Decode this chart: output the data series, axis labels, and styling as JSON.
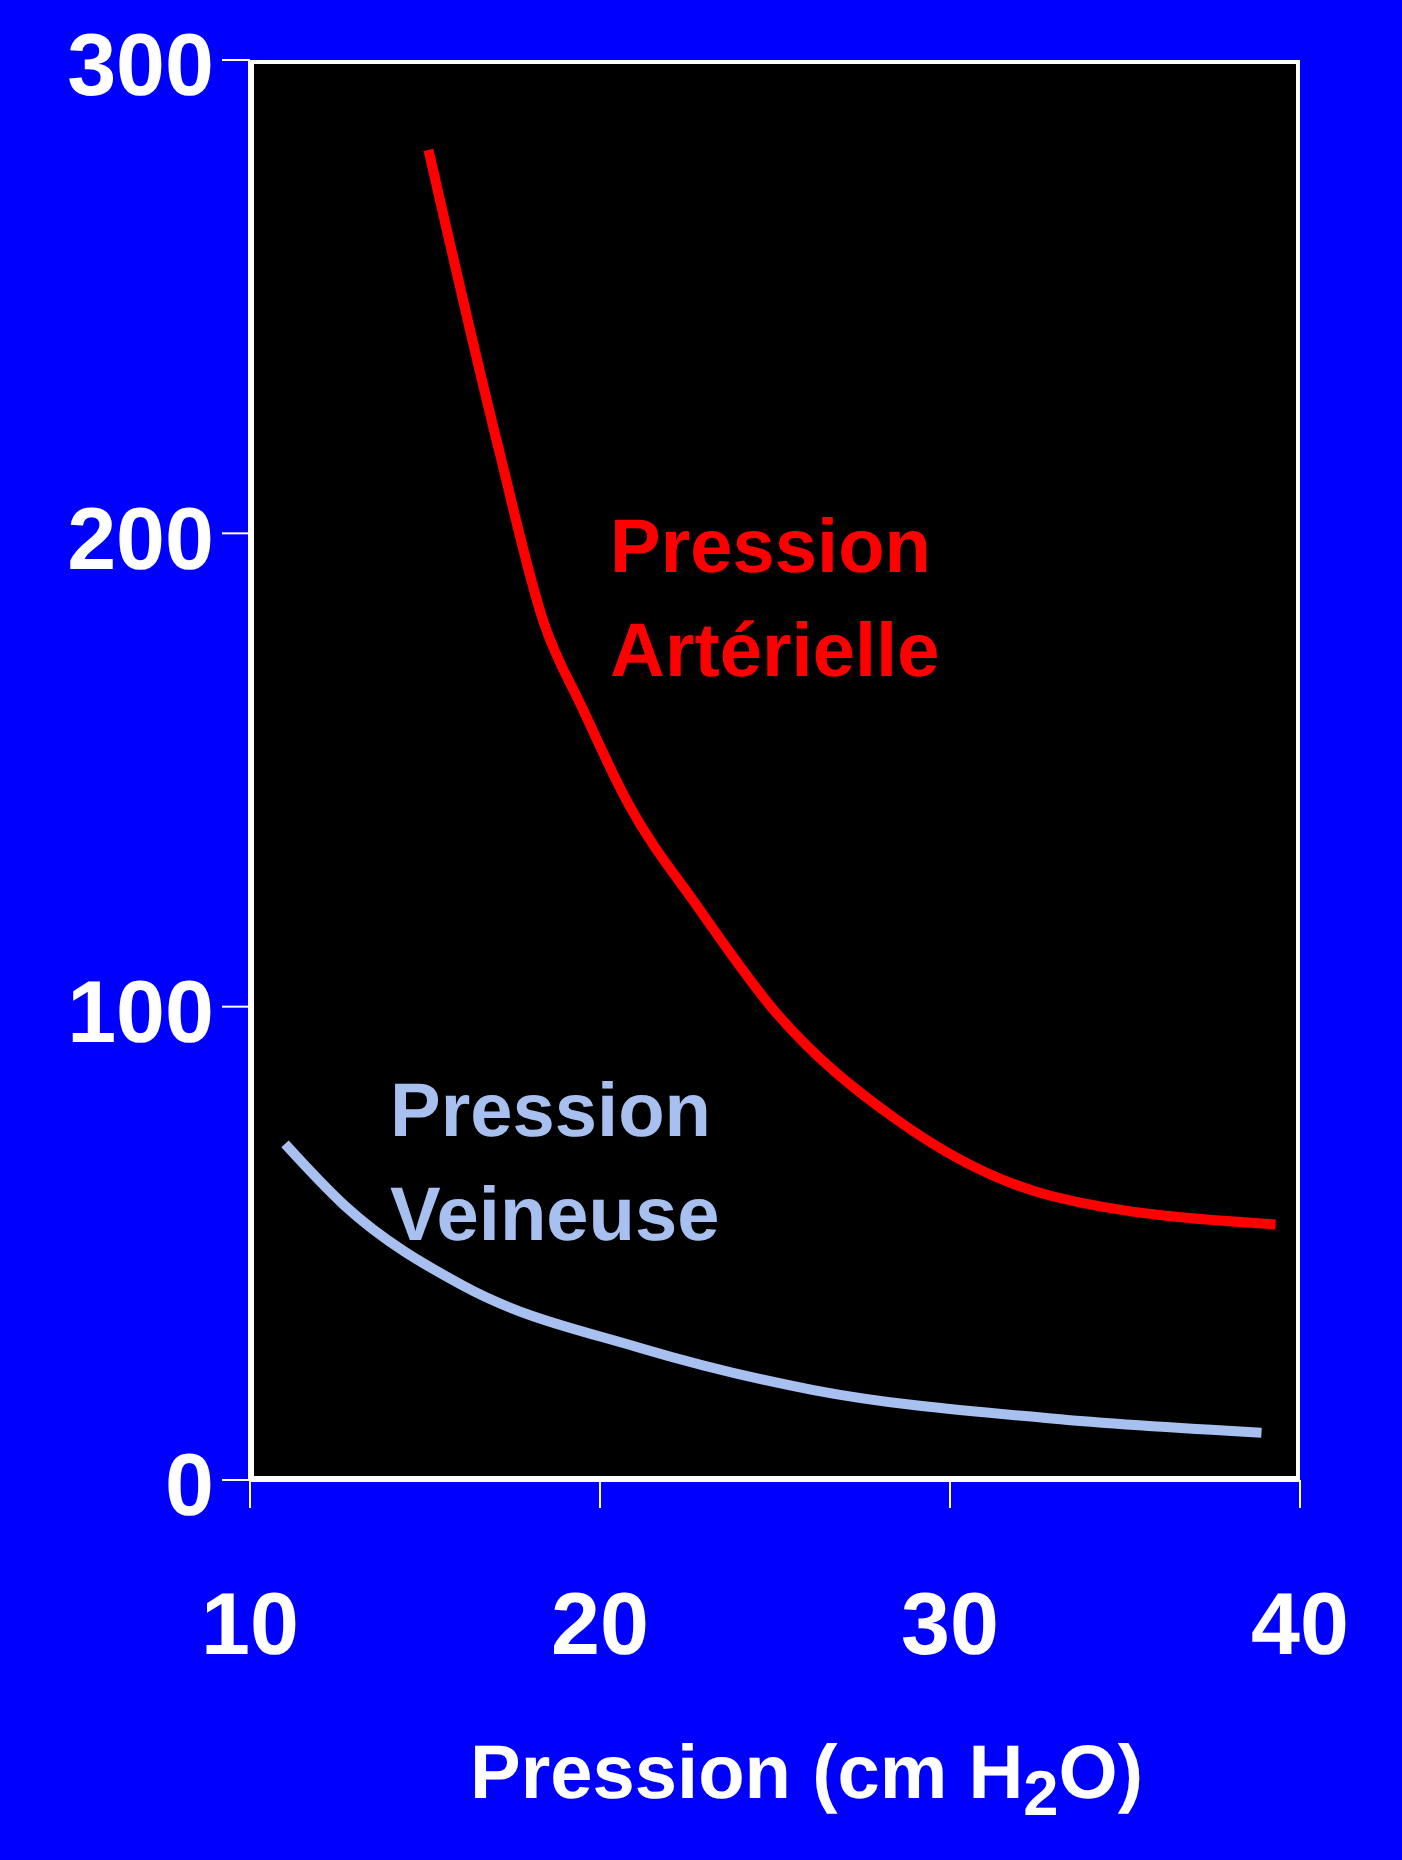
{
  "chart_data": {
    "type": "line",
    "xlabel": "Pression (cm H$_{2}$O)",
    "xlim": [
      10,
      40
    ],
    "xticks": [
      10,
      20,
      30,
      40
    ],
    "ylim": [
      0,
      300
    ],
    "yticks": [
      0,
      100,
      200,
      300
    ],
    "marker": "none",
    "line_style": "solid",
    "series": [
      {
        "name": "Pression Artérielle",
        "color": "#ff0000",
        "x": [
          15.1,
          17.1,
          18.4,
          19.5,
          20.8,
          22.8,
          25.0,
          28.5,
          32.9,
          39.3
        ],
        "values": [
          281,
          218,
          181,
          163,
          143,
          121,
          99,
          76,
          60,
          54
        ]
      },
      {
        "name": "Pression Veineuse",
        "color": "#a8c0f0",
        "x": [
          11.0,
          12.7,
          16.1,
          21.1,
          26.1,
          32.9,
          38.9
        ],
        "values": [
          71,
          58,
          41,
          28,
          19,
          13,
          10
        ]
      }
    ]
  }
}
